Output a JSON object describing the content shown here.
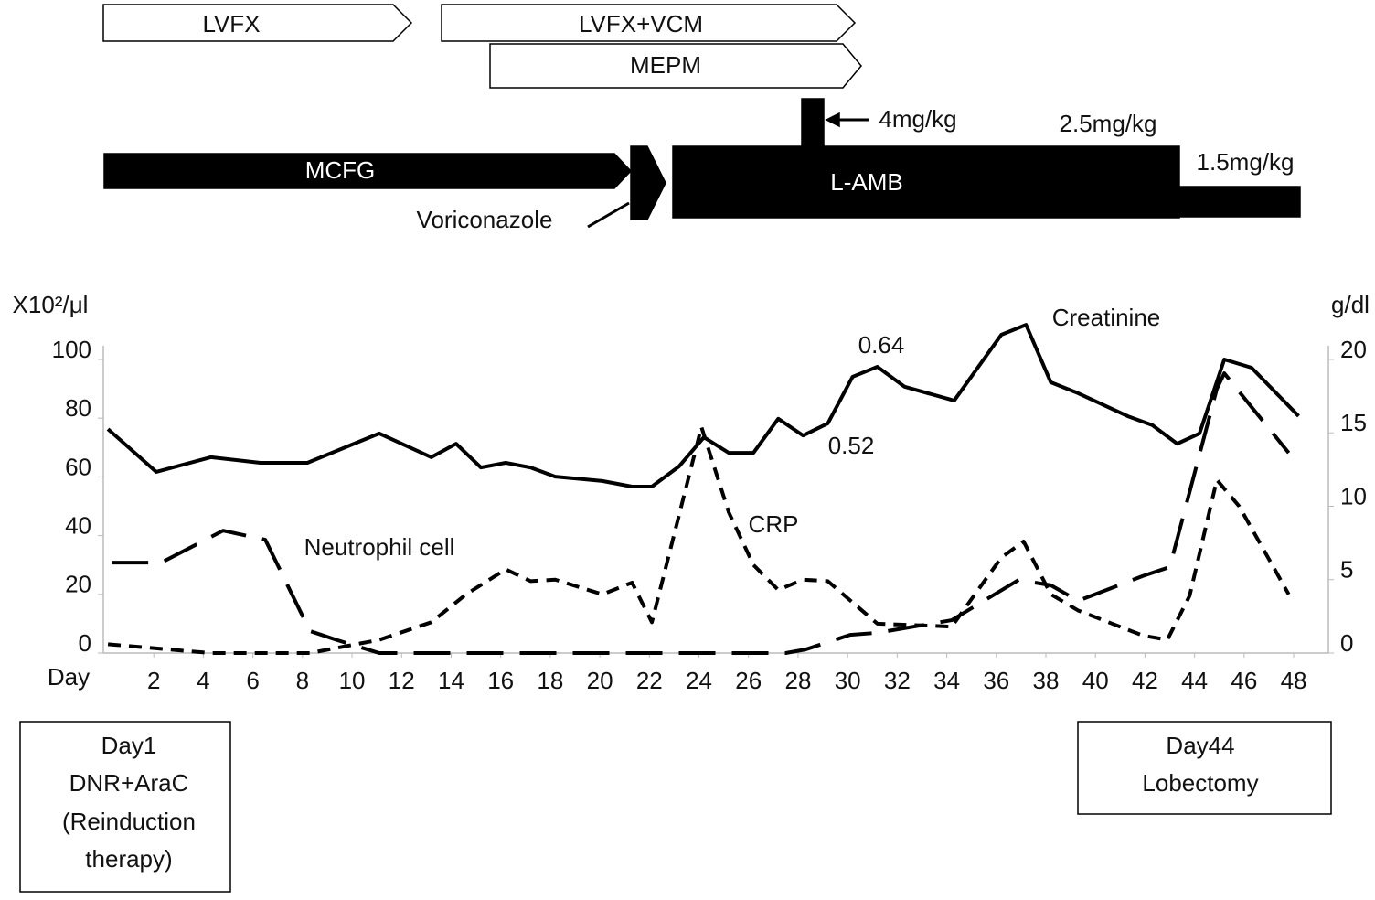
{
  "regimens": {
    "lvfx": "LVFX",
    "lvfx_vcm": "LVFX+VCM",
    "mepm": "MEPM",
    "mcfg": "MCFG",
    "voriconazole": "Voriconazole",
    "lamb": "L-AMB",
    "dose_high": "4mg/kg",
    "dose_mid": "2.5mg/kg",
    "dose_low": "1.5mg/kg"
  },
  "notes": {
    "left": [
      "Day1",
      "DNR+AraC",
      "(Reinduction",
      "therapy)"
    ],
    "right": [
      "Day44",
      "Lobectomy"
    ]
  },
  "chart_data": {
    "type": "line",
    "x_label": "Day",
    "y_label": "X10²/μl",
    "y2_label": "g/dl",
    "annotations": [
      "0.64",
      "0.52"
    ],
    "xlim": [
      0,
      49.4
    ],
    "xticks": [
      2,
      4,
      6,
      8,
      10,
      12,
      14,
      16,
      18,
      20,
      22,
      24,
      26,
      28,
      30,
      32,
      34,
      36,
      38,
      40,
      42,
      44,
      46,
      48
    ],
    "ylim": [
      0,
      100
    ],
    "yticks": [
      0,
      20,
      40,
      60,
      80,
      100
    ],
    "y2lim": [
      0,
      20
    ],
    "y2ticks": [
      0,
      5,
      10,
      15,
      20
    ],
    "series": [
      {
        "name": "Creatinine",
        "color": "#000000",
        "dash": "none",
        "x": [
          0.15,
          2.1,
          4.3,
          6.3,
          8.2,
          11.1,
          13.2,
          14.2,
          15.2,
          16.2,
          17.2,
          18.2,
          20.1,
          21.3,
          22.1,
          23.2,
          24.2,
          25.2,
          26.2,
          27.2,
          28.2,
          29.2,
          30.2,
          31.2,
          32.3,
          34.3,
          36.2,
          37.2,
          38.2,
          39.3,
          41.3,
          42.3,
          43.3,
          44.2,
          45.2,
          46.3,
          48.2
        ],
        "values": [
          76.3,
          61.7,
          66.7,
          64.8,
          64.8,
          74.8,
          66.7,
          71.3,
          63.2,
          64.8,
          63.2,
          60.1,
          58.6,
          56.7,
          56.7,
          63.6,
          73.5,
          68.2,
          68.2,
          79.8,
          74.1,
          78.2,
          94.1,
          97.5,
          90.7,
          86,
          108.4,
          111.8,
          92.2,
          88.5,
          80.7,
          77.6,
          71.3,
          74.8,
          100,
          97.2,
          80.7
        ]
      },
      {
        "name": "Neutrophil cell",
        "color": "#000000",
        "dash": "40 18",
        "x": [
          0.3,
          2.3,
          4.8,
          6.5,
          8.3,
          9.4,
          11.1,
          27.5,
          28.3,
          30.1,
          31.2,
          34.2,
          36.9,
          38.2,
          39.3,
          41.9,
          43,
          44.9,
          45.2,
          46.3,
          47.8
        ],
        "values": [
          30.8,
          30.8,
          41.7,
          38.6,
          7.5,
          4.4,
          0,
          0,
          1.2,
          6.2,
          6.9,
          11.2,
          24.9,
          23.1,
          17.8,
          26.2,
          29.3,
          90,
          95.3,
          83.8,
          68.2
        ]
      },
      {
        "name": "CRP",
        "color": "#000000",
        "dash": "14 9",
        "axis": "y2",
        "x": [
          0.15,
          4.3,
          8.3,
          11.1,
          13.2,
          14.6,
          16.2,
          17.2,
          18.2,
          20.1,
          21.3,
          22.1,
          24.1,
          25.2,
          26.2,
          27.2,
          28.2,
          29.2,
          31.2,
          34.2,
          36.2,
          37.1,
          38.2,
          39.3,
          41.9,
          42.9,
          43.8,
          44.9,
          45.8,
          47.8
        ],
        "values": [
          0.6,
          0,
          0,
          0.9,
          2.1,
          4,
          5.7,
          4.9,
          5,
          4,
          4.8,
          2.1,
          15.4,
          9.6,
          6,
          4.3,
          5,
          4.9,
          2,
          1.8,
          6.5,
          7.6,
          4,
          2.9,
          1.2,
          0.9,
          3.9,
          11.8,
          10,
          4
        ]
      }
    ]
  }
}
